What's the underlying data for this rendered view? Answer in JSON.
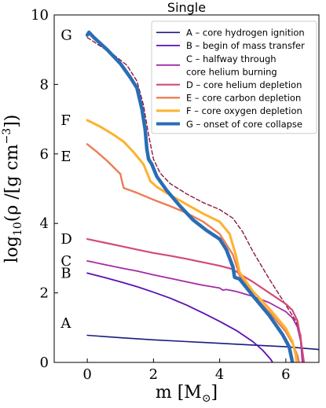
{
  "chart_data": {
    "type": "line",
    "title": "Single",
    "xlabel": "m [M",
    "xlabel_sub": "⊙",
    "xlabel_end": "]",
    "ylabel": "log10(ρ / [g cm−3])",
    "xlim": [
      -1,
      7
    ],
    "ylim": [
      0,
      10
    ],
    "xticks": [
      0,
      2,
      4,
      6
    ],
    "yticks": [
      0,
      2,
      4,
      6,
      8,
      10
    ],
    "grid": false,
    "legend_position": "top-right",
    "series": [
      {
        "name": "A – core hydrogen ignition",
        "label": "A",
        "color": "#1a1a80",
        "width": 1.6,
        "points": [
          [
            0,
            0.78
          ],
          [
            1,
            0.71
          ],
          [
            2,
            0.65
          ],
          [
            3,
            0.6
          ],
          [
            4,
            0.55
          ],
          [
            5,
            0.5
          ],
          [
            6,
            0.45
          ],
          [
            7,
            0.37
          ]
        ]
      },
      {
        "name": "B – begin of mass transfer",
        "label": "B",
        "color": "#5b0fb5",
        "width": 1.8,
        "points": [
          [
            0,
            2.57
          ],
          [
            0.5,
            2.45
          ],
          [
            1,
            2.32
          ],
          [
            1.5,
            2.18
          ],
          [
            2,
            2.02
          ],
          [
            2.5,
            1.85
          ],
          [
            3,
            1.65
          ],
          [
            3.5,
            1.42
          ],
          [
            4,
            1.18
          ],
          [
            4.5,
            0.92
          ],
          [
            5,
            0.6
          ],
          [
            5.3,
            0.35
          ],
          [
            5.55,
            0.08
          ],
          [
            5.6,
            0
          ]
        ]
      },
      {
        "name_line1": "C – halfway through",
        "name": "core helium burning",
        "label": "C",
        "color": "#a22ba6",
        "width": 1.8,
        "points": [
          [
            0,
            2.92
          ],
          [
            0.5,
            2.82
          ],
          [
            1,
            2.72
          ],
          [
            1.5,
            2.63
          ],
          [
            2,
            2.52
          ],
          [
            2.5,
            2.42
          ],
          [
            3,
            2.32
          ],
          [
            3.5,
            2.22
          ],
          [
            4,
            2.14
          ],
          [
            4.1,
            2.08
          ],
          [
            4.2,
            2.1
          ],
          [
            4.5,
            2.04
          ],
          [
            5,
            1.9
          ],
          [
            5.5,
            1.72
          ],
          [
            6,
            1.46
          ],
          [
            6.2,
            1.28
          ],
          [
            6.35,
            1.02
          ],
          [
            6.45,
            0.6
          ],
          [
            6.5,
            0
          ]
        ]
      },
      {
        "name": "D – core helium depletion",
        "label": "D",
        "color": "#d34a78",
        "width": 2.2,
        "points": [
          [
            0,
            3.55
          ],
          [
            0.5,
            3.45
          ],
          [
            1,
            3.35
          ],
          [
            1.5,
            3.25
          ],
          [
            2,
            3.15
          ],
          [
            2.5,
            3.07
          ],
          [
            3,
            2.98
          ],
          [
            3.5,
            2.88
          ],
          [
            4,
            2.78
          ],
          [
            4.4,
            2.68
          ],
          [
            4.6,
            2.55
          ],
          [
            5,
            2.32
          ],
          [
            5.5,
            2.0
          ],
          [
            6,
            1.68
          ],
          [
            6.2,
            1.5
          ],
          [
            6.35,
            1.2
          ],
          [
            6.45,
            0.7
          ],
          [
            6.55,
            0
          ]
        ]
      },
      {
        "name": "E – core carbon depletion",
        "label": "E",
        "color": "#ec7d55",
        "width": 2.4,
        "points": [
          [
            0,
            6.28
          ],
          [
            0.3,
            6.05
          ],
          [
            0.6,
            5.8
          ],
          [
            1.0,
            5.42
          ],
          [
            1.05,
            5.2
          ],
          [
            1.1,
            5.02
          ],
          [
            1.5,
            4.88
          ],
          [
            2,
            4.68
          ],
          [
            2.5,
            4.5
          ],
          [
            3,
            4.3
          ],
          [
            3.5,
            4.05
          ],
          [
            4,
            3.7
          ],
          [
            4.4,
            3.1
          ],
          [
            4.6,
            2.5
          ],
          [
            5,
            1.95
          ],
          [
            5.5,
            1.45
          ],
          [
            6,
            0.88
          ],
          [
            6.2,
            0.55
          ],
          [
            6.35,
            0.2
          ],
          [
            6.4,
            0
          ]
        ]
      },
      {
        "name": "F – core oxygen depletion",
        "label": "F",
        "color": "#fdb22e",
        "width": 3,
        "points": [
          [
            0,
            6.97
          ],
          [
            0.4,
            6.78
          ],
          [
            0.8,
            6.55
          ],
          [
            1.1,
            6.35
          ],
          [
            1.4,
            6.05
          ],
          [
            1.7,
            5.7
          ],
          [
            1.85,
            5.35
          ],
          [
            1.9,
            5.22
          ],
          [
            2.1,
            5.05
          ],
          [
            2.5,
            4.82
          ],
          [
            3,
            4.55
          ],
          [
            3.5,
            4.28
          ],
          [
            4,
            4.05
          ],
          [
            4.3,
            3.7
          ],
          [
            4.5,
            3.05
          ],
          [
            4.6,
            2.6
          ],
          [
            5,
            2.05
          ],
          [
            5.5,
            1.55
          ],
          [
            6,
            0.98
          ],
          [
            6.2,
            0.6
          ],
          [
            6.3,
            0.2
          ],
          [
            6.32,
            0
          ]
        ]
      },
      {
        "name": "G – onset of core collapse",
        "label": "G",
        "color": "#2a6db5",
        "width": 4.5,
        "points": [
          [
            0,
            9.42
          ],
          [
            0.05,
            9.5
          ],
          [
            0.2,
            9.35
          ],
          [
            0.6,
            9.0
          ],
          [
            1.0,
            8.6
          ],
          [
            1.3,
            8.2
          ],
          [
            1.5,
            7.9
          ],
          [
            1.65,
            7.3
          ],
          [
            1.75,
            6.7
          ],
          [
            1.8,
            6.15
          ],
          [
            1.85,
            5.85
          ],
          [
            1.95,
            5.7
          ],
          [
            2.1,
            5.35
          ],
          [
            2.4,
            4.95
          ],
          [
            2.8,
            4.5
          ],
          [
            3.2,
            4.1
          ],
          [
            3.6,
            3.8
          ],
          [
            4,
            3.55
          ],
          [
            4.2,
            3.25
          ],
          [
            4.4,
            2.75
          ],
          [
            4.45,
            2.45
          ],
          [
            4.6,
            2.4
          ],
          [
            5,
            1.92
          ],
          [
            5.5,
            1.35
          ],
          [
            5.9,
            0.8
          ],
          [
            6.1,
            0.45
          ],
          [
            6.2,
            0
          ]
        ]
      },
      {
        "name": "",
        "color": "#8b1a3d",
        "width": 1.4,
        "dashed": true,
        "points": [
          [
            0,
            9.35
          ],
          [
            0.4,
            9.1
          ],
          [
            0.8,
            8.85
          ],
          [
            1.2,
            8.55
          ],
          [
            1.5,
            8.1
          ],
          [
            1.7,
            7.4
          ],
          [
            1.85,
            6.55
          ],
          [
            2.0,
            5.85
          ],
          [
            2.2,
            5.45
          ],
          [
            2.5,
            5.15
          ],
          [
            3,
            4.85
          ],
          [
            3.5,
            4.6
          ],
          [
            4,
            4.4
          ],
          [
            4.4,
            4.15
          ],
          [
            4.7,
            3.75
          ],
          [
            5,
            3.2
          ],
          [
            5.5,
            2.4
          ],
          [
            6,
            1.65
          ],
          [
            6.3,
            1.2
          ],
          [
            6.45,
            0.8
          ],
          [
            6.5,
            0.2
          ],
          [
            6.52,
            0
          ]
        ]
      }
    ]
  },
  "axis": {
    "ylabel_prefix": "log",
    "ylabel_sub": "10",
    "ylabel_body": "(ρ /[g cm",
    "ylabel_sup": "−3",
    "ylabel_end": "])"
  }
}
